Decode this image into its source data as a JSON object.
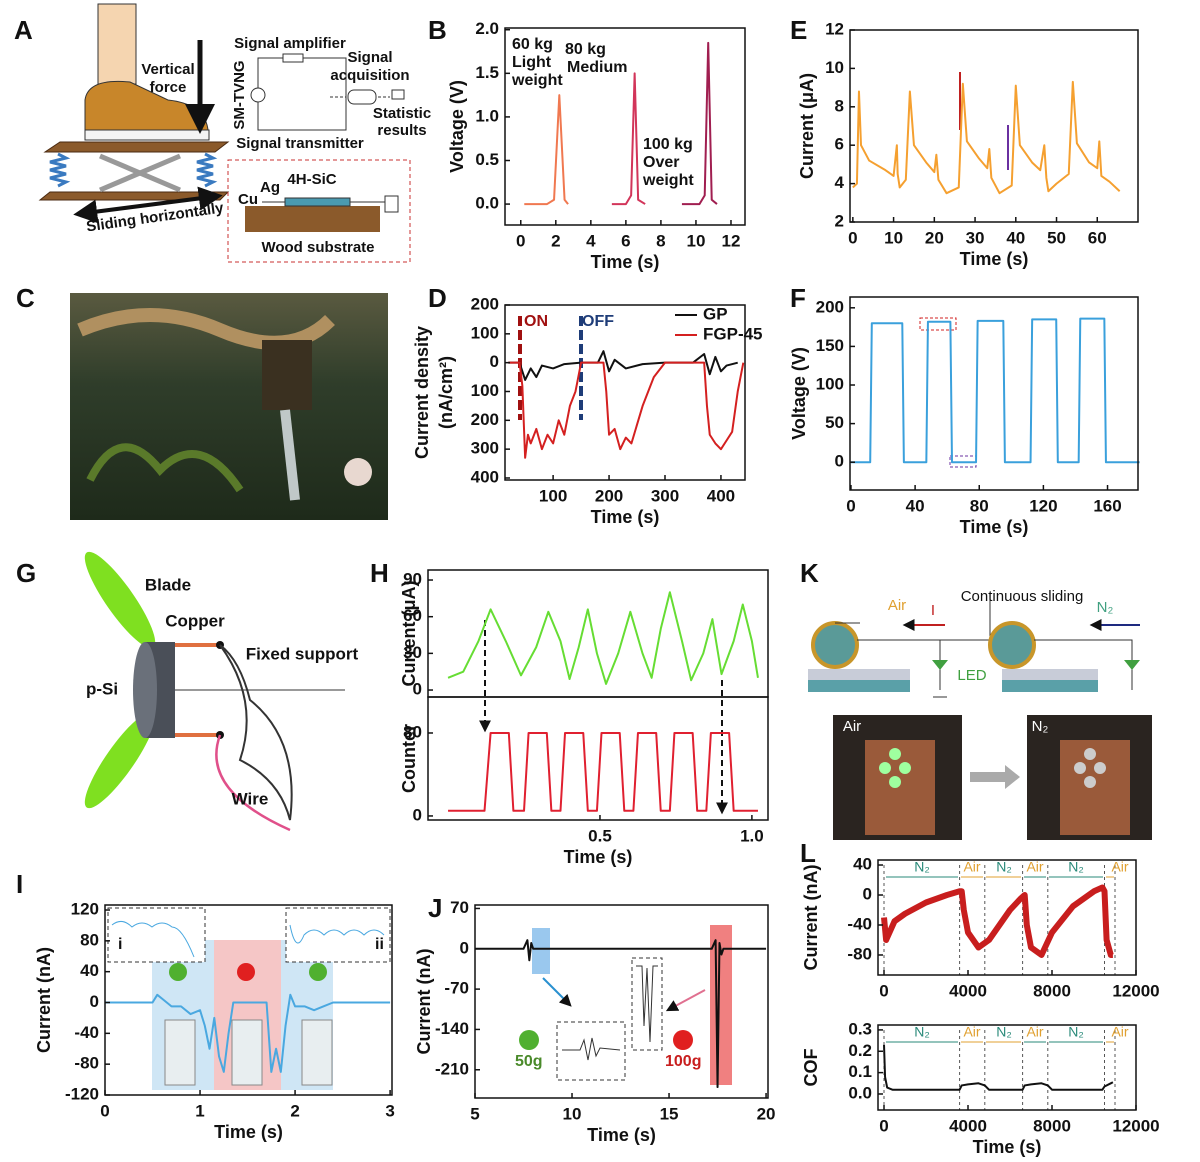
{
  "panels": [
    "A",
    "B",
    "C",
    "D",
    "E",
    "F",
    "G",
    "H",
    "I",
    "J",
    "K",
    "L"
  ],
  "diagram_a": {
    "force": [
      "Vertical",
      "force"
    ],
    "amplifier": "Signal amplifier",
    "device": "SM-TVNG",
    "acquisition": [
      "Signal",
      "acquisition"
    ],
    "statistic": [
      "Statistic",
      "results"
    ],
    "transmitter": "Signal transmitter",
    "sliding": "Sliding horizontally",
    "cu": "Cu",
    "ag": "Ag",
    "sic": "4H-SiC",
    "substrate": "Wood substrate"
  },
  "diagram_g": {
    "blade": "Blade",
    "copper": "Copper",
    "support": "Fixed support",
    "psi": "p-Si",
    "wire": "Wire"
  },
  "diagram_k": {
    "air": "Air",
    "n2": "N₂",
    "sliding": "Continuous sliding",
    "current": "I",
    "led": "LED",
    "photo_air": "Air",
    "photo_n2": "N₂"
  },
  "chart_data": [
    {
      "type": "line",
      "xlabel": "Time (s)",
      "ylabel": "Voltage (V)",
      "xlim": [
        -0.9,
        12.8
      ],
      "ylim": [
        -0.24,
        2.02
      ],
      "xticks": [
        0,
        2,
        4,
        6,
        8,
        10,
        12
      ],
      "yticks": [
        {
          "value": 0,
          "label": "0.0"
        },
        0.5,
        {
          "value": 1,
          "label": "1.0"
        },
        1.5,
        {
          "value": 2,
          "label": "2.0"
        }
      ],
      "annotations": [
        "60 kg",
        "Light",
        "weight",
        "80 kg",
        "Medium",
        "100 kg",
        "Over",
        "weight"
      ],
      "series": [
        {
          "color": "#f07850",
          "x": [
            0.2,
            1.5,
            1.9,
            2.2,
            2.5,
            2.7
          ],
          "values": [
            0,
            0,
            0.05,
            1.25,
            0.05,
            0
          ]
        },
        {
          "color": "#d2355a",
          "x": [
            5.2,
            6.0,
            6.3,
            6.5,
            6.7,
            7.1
          ],
          "values": [
            0,
            0,
            0.1,
            1.5,
            0.05,
            0
          ]
        },
        {
          "color": "#a01e50",
          "x": [
            9.2,
            10.2,
            10.5,
            10.7,
            10.9,
            11.2
          ],
          "values": [
            0,
            0,
            0.1,
            1.85,
            0.05,
            0
          ]
        }
      ]
    },
    {
      "type": "line",
      "xlabel": "Time (s)",
      "ylabel": "Current (μA)",
      "xlim": [
        -0.7,
        70
      ],
      "ylim": [
        2,
        12
      ],
      "xticks": [
        0,
        10,
        20,
        30,
        40,
        50,
        60
      ],
      "yticks": [
        2,
        4,
        6,
        8,
        10,
        12
      ],
      "series": [
        {
          "color": "#f5a030",
          "x": [
            0,
            1,
            1.5,
            2,
            4,
            8,
            10,
            10.8,
            11,
            11.5,
            13,
            14,
            15,
            18,
            20,
            20.5,
            21,
            23,
            26,
            27,
            28,
            31,
            33,
            33.5,
            34,
            36,
            39,
            40,
            41,
            44,
            46,
            47,
            47.5,
            48,
            50,
            53,
            54,
            55,
            58,
            60,
            60.5,
            61,
            63,
            65.5
          ],
          "values": [
            3.8,
            4,
            8.8,
            6,
            5.2,
            4.7,
            4.4,
            6,
            4.5,
            3.8,
            4.2,
            8.8,
            6,
            5.1,
            4.6,
            5.5,
            4.2,
            3.5,
            3.8,
            9.2,
            6.2,
            5.3,
            4.8,
            5.8,
            4.3,
            3.5,
            3.9,
            9.1,
            6,
            5.1,
            4.7,
            6,
            4.3,
            3.6,
            4,
            4.5,
            9.3,
            6.1,
            5.1,
            4.8,
            6.2,
            4.4,
            4.1,
            3.6
          ]
        }
      ]
    },
    {
      "type": "line",
      "xlabel": "Time (s)",
      "ylabel": [
        "Current density",
        "(nA/cm²)"
      ],
      "xlim": [
        14,
        443
      ],
      "ylim": [
        -407,
        200
      ],
      "xticks": [
        100,
        200,
        300,
        400
      ],
      "yticks": [
        200,
        100,
        0,
        {
          "value": -100,
          "label": "100"
        },
        {
          "value": -200,
          "label": "200"
        },
        {
          "value": -300,
          "label": "300"
        },
        {
          "value": -400,
          "label": "400"
        }
      ],
      "annotations": [
        "ON",
        "OFF"
      ],
      "legend": "upper right",
      "series": [
        {
          "name": "GP",
          "color": "#111111",
          "x": [
            20,
            40,
            50,
            60,
            70,
            80,
            100,
            120,
            150,
            180,
            190,
            200,
            210,
            230,
            260,
            300,
            330,
            350,
            370,
            380,
            390,
            400,
            410,
            430
          ],
          "values": [
            0,
            0,
            -60,
            -20,
            -50,
            -10,
            -20,
            -5,
            0,
            0,
            40,
            -30,
            10,
            -20,
            -5,
            0,
            0,
            0,
            30,
            -40,
            20,
            -30,
            -10,
            0
          ]
        },
        {
          "name": "FGP-45",
          "color": "#d42020",
          "x": [
            20,
            40,
            45,
            50,
            55,
            60,
            70,
            80,
            90,
            100,
            110,
            120,
            130,
            140,
            150,
            170,
            190,
            195,
            200,
            210,
            220,
            230,
            240,
            260,
            280,
            300,
            340,
            370,
            375,
            380,
            390,
            400,
            410,
            420,
            430,
            440
          ],
          "values": [
            0,
            0,
            -80,
            -330,
            -250,
            -280,
            -230,
            -300,
            -250,
            -280,
            -200,
            -250,
            -150,
            -100,
            0,
            0,
            0,
            -100,
            -250,
            -230,
            -300,
            -260,
            -280,
            -150,
            -50,
            0,
            0,
            0,
            -150,
            -250,
            -280,
            -300,
            -270,
            -240,
            -100,
            0
          ]
        }
      ]
    },
    {
      "type": "line",
      "xlabel": "Time (s)",
      "ylabel": "Voltage (V)",
      "xlim": [
        -0.6,
        179
      ],
      "ylim": [
        -36,
        214
      ],
      "xticks": [
        0,
        40,
        80,
        120,
        160
      ],
      "yticks": [
        0,
        50,
        100,
        150,
        200
      ],
      "series": [
        {
          "color": "#3aa0dc",
          "x": [
            0,
            12,
            13,
            32,
            33,
            47,
            48,
            62,
            63,
            78,
            79,
            95,
            96,
            112,
            113,
            128,
            129,
            142,
            143,
            158,
            159,
            180
          ],
          "values": [
            0,
            0,
            180,
            180,
            0,
            0,
            182,
            182,
            0,
            0,
            183,
            183,
            0,
            0,
            185,
            185,
            0,
            0,
            186,
            186,
            0,
            0
          ]
        }
      ]
    },
    {
      "type": "line",
      "ylabel": "Current (μA)",
      "xlim": [
        -0.066,
        1.053
      ],
      "ylim": [
        -5.7,
        98.2
      ],
      "yticks": [
        0,
        30,
        60,
        90
      ],
      "series": [
        {
          "color": "#66dd33",
          "x": [
            0,
            0.05,
            0.1,
            0.14,
            0.19,
            0.24,
            0.29,
            0.33,
            0.37,
            0.4,
            0.43,
            0.46,
            0.49,
            0.52,
            0.56,
            0.6,
            0.64,
            0.67,
            0.7,
            0.73,
            0.77,
            0.8,
            0.84,
            0.87,
            0.9,
            0.94,
            0.97,
            1.0,
            1.02
          ],
          "values": [
            10,
            15,
            40,
            66,
            40,
            12,
            35,
            64,
            40,
            9,
            35,
            66,
            30,
            5,
            30,
            64,
            30,
            10,
            50,
            80,
            40,
            8,
            30,
            58,
            13,
            40,
            70,
            40,
            10
          ]
        }
      ]
    },
    {
      "type": "line",
      "xlabel": "Time (s)",
      "ylabel": "Counter",
      "xlim": [
        -0.066,
        1.053
      ],
      "ylim": [
        -3.9,
        114.7
      ],
      "xticks": [
        0.5,
        {
          "value": 1,
          "label": "1.0"
        }
      ],
      "yticks": [
        0,
        80
      ],
      "series": [
        {
          "color": "#e02030",
          "x": [
            0,
            0.12,
            0.14,
            0.2,
            0.215,
            0.25,
            0.265,
            0.325,
            0.34,
            0.37,
            0.385,
            0.445,
            0.46,
            0.49,
            0.505,
            0.565,
            0.58,
            0.61,
            0.625,
            0.685,
            0.7,
            0.73,
            0.745,
            0.805,
            0.82,
            0.85,
            0.865,
            0.925,
            0.94,
            1.02
          ],
          "values": [
            5,
            5,
            80,
            80,
            5,
            5,
            80,
            80,
            5,
            5,
            80,
            80,
            5,
            5,
            80,
            80,
            5,
            5,
            80,
            80,
            5,
            5,
            80,
            80,
            5,
            5,
            80,
            80,
            5,
            5
          ]
        }
      ]
    },
    {
      "type": "line",
      "xlabel": "Time (s)",
      "ylabel": "Current (nA)",
      "xlim": [
        0,
        3.02
      ],
      "ylim": [
        -120,
        126.5
      ],
      "xticks": [
        0,
        1,
        2,
        3
      ],
      "yticks": [
        120,
        80,
        40,
        0,
        -40,
        -80,
        -120
      ],
      "annotations": [
        "i",
        "ii"
      ],
      "series": [
        {
          "color": "#4aa8e0",
          "x": [
            0,
            0.5,
            0.55,
            0.6,
            0.7,
            0.8,
            0.9,
            1.0,
            1.05,
            1.1,
            1.15,
            1.2,
            1.25,
            1.3,
            1.35,
            1.4,
            1.6,
            1.7,
            1.75,
            1.8,
            1.85,
            1.9,
            1.95,
            2.0,
            2.1,
            2.2,
            2.3,
            2.4,
            2.5,
            3.0
          ],
          "values": [
            0,
            0,
            10,
            5,
            -5,
            -5,
            -15,
            -10,
            -30,
            -60,
            -20,
            -70,
            -90,
            -40,
            0,
            0,
            0,
            0,
            -90,
            -60,
            -90,
            -30,
            10,
            -5,
            -5,
            -10,
            -5,
            0,
            0,
            0
          ]
        }
      ]
    },
    {
      "type": "line",
      "xlabel": "Time (s)",
      "ylabel": "Current (nA)",
      "xlim": [
        5,
        20.1
      ],
      "ylim": [
        -259,
        76
      ],
      "xticks": [
        5,
        10,
        15,
        20
      ],
      "yticks": [
        70,
        0,
        -70,
        -140,
        -210
      ],
      "annotations": [
        "50g",
        "100g"
      ],
      "series": [
        {
          "color": "#111111",
          "x": [
            5,
            7.5,
            7.7,
            7.8,
            7.9,
            8.0,
            17.2,
            17.4,
            17.5,
            17.6,
            17.7,
            17.8,
            20
          ],
          "values": [
            0,
            0,
            15,
            -20,
            10,
            0,
            0,
            15,
            -240,
            10,
            -10,
            0,
            0
          ]
        }
      ]
    },
    {
      "type": "line",
      "ylabel": "Current (nA)",
      "xlim": [
        -286,
        12000
      ],
      "ylim": [
        -106.7,
        46.7
      ],
      "xticks": [
        0,
        4000,
        8000,
        12000
      ],
      "yticks": [
        40,
        0,
        -40,
        -80
      ],
      "annotations": [
        "N₂",
        "Air",
        "N₂",
        "Air",
        "N₂",
        "Air"
      ],
      "series": [
        {
          "color": "#c81e1e",
          "x": [
            0,
            100,
            500,
            1000,
            2000,
            3000,
            3600,
            3700,
            3800,
            4000,
            4500,
            5000,
            5500,
            6000,
            6500,
            6700,
            6800,
            7000,
            7500,
            8000,
            9000,
            10000,
            10400,
            10500,
            10600,
            10800,
            10900
          ],
          "values": [
            -30,
            -60,
            -35,
            -25,
            -10,
            0,
            5,
            5,
            -20,
            -50,
            -70,
            -60,
            -40,
            -20,
            -5,
            0,
            -40,
            -70,
            -80,
            -50,
            -15,
            5,
            10,
            5,
            -60,
            -80,
            -80
          ]
        }
      ]
    },
    {
      "type": "line",
      "xlabel": "Time (s)",
      "ylabel": "COF",
      "xlim": [
        -286,
        12000
      ],
      "ylim": [
        -0.075,
        0.323
      ],
      "xticks": [
        0,
        4000,
        8000,
        12000
      ],
      "yticks": [
        {
          "value": 0,
          "label": "0.0"
        },
        0.1,
        0.2,
        0.3
      ],
      "annotations": [
        "N₂",
        "Air",
        "N₂",
        "Air",
        "N₂",
        "Air"
      ],
      "series": [
        {
          "color": "#111111",
          "x": [
            0,
            50,
            150,
            400,
            1000,
            2000,
            3000,
            3600,
            3700,
            4000,
            4500,
            4800,
            5000,
            6000,
            6600,
            6700,
            7000,
            7500,
            7800,
            8000,
            9000,
            10400,
            10500,
            10800,
            10900
          ],
          "values": [
            0.23,
            0.08,
            0.03,
            0.02,
            0.02,
            0.02,
            0.02,
            0.02,
            0.04,
            0.045,
            0.05,
            0.04,
            0.02,
            0.02,
            0.02,
            0.04,
            0.045,
            0.05,
            0.04,
            0.02,
            0.02,
            0.02,
            0.035,
            0.05,
            0.055
          ]
        }
      ]
    }
  ]
}
